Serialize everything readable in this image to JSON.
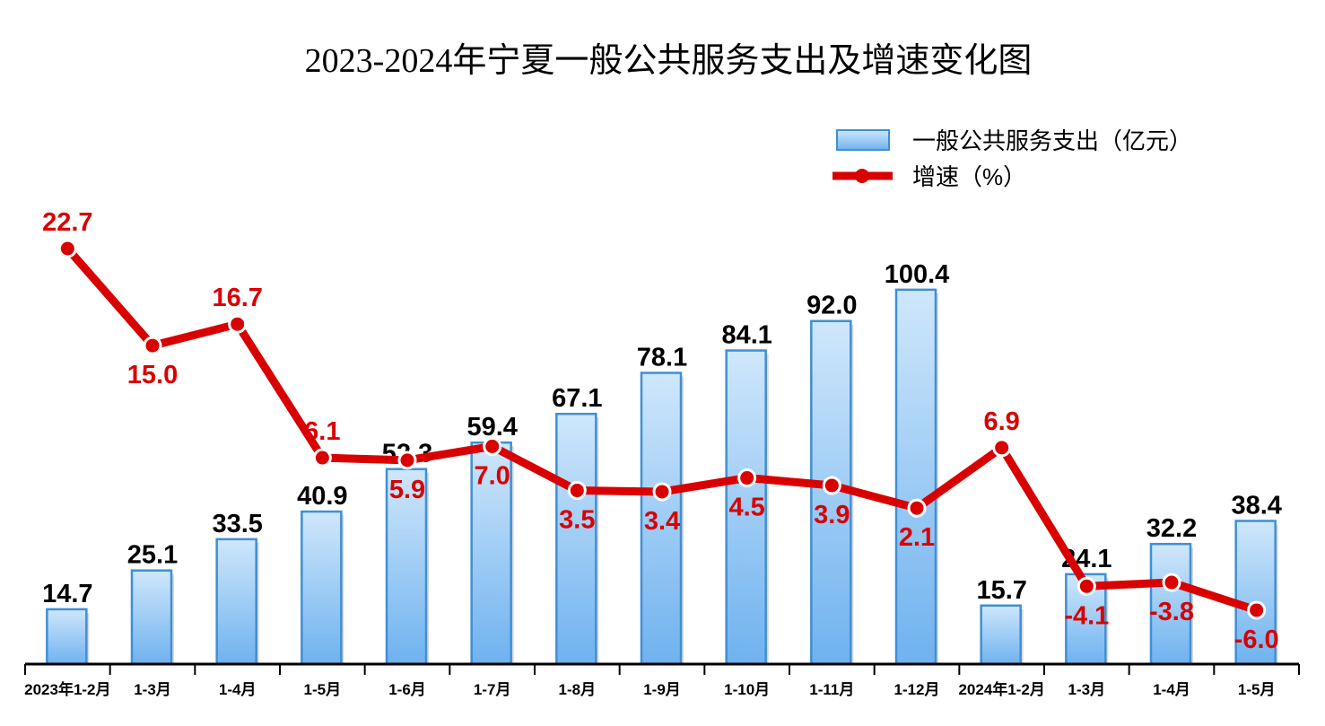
{
  "chart_data": {
    "type": "bar+line",
    "title": "2023-2024年宁夏一般公共服务支出及增速变化图",
    "categories": [
      "2023年1-2月",
      "1-3月",
      "1-4月",
      "1-5月",
      "1-6月",
      "1-7月",
      "1-8月",
      "1-9月",
      "1-10月",
      "1-11月",
      "1-12月",
      "2024年1-2月",
      "1-3月",
      "1-4月",
      "1-5月"
    ],
    "series": [
      {
        "name": "一般公共服务支出（亿元）",
        "type": "bar",
        "values": [
          14.7,
          25.1,
          33.5,
          40.9,
          52.3,
          59.4,
          67.1,
          78.1,
          84.1,
          92.0,
          100.4,
          15.7,
          24.1,
          32.2,
          38.4
        ]
      },
      {
        "name": "增速（%）",
        "type": "line",
        "values": [
          22.7,
          15.0,
          16.7,
          6.1,
          5.9,
          7.0,
          3.5,
          3.4,
          4.5,
          3.9,
          2.1,
          6.9,
          -4.1,
          -3.8,
          -6.0
        ]
      }
    ],
    "legend": "top-right",
    "grid": false,
    "colors": {
      "bar": "#8cc4f2",
      "bar_border": "#3f8fd6",
      "line": "#d90000"
    }
  }
}
